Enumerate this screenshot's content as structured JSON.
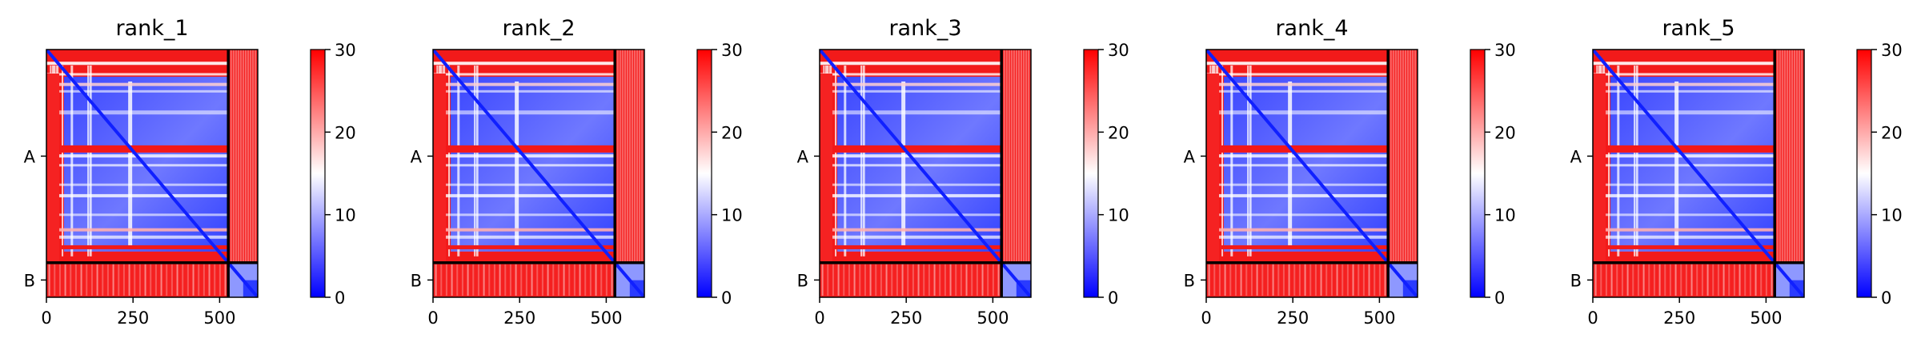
{
  "chart_data": {
    "type": "heatmap",
    "colormap": {
      "low": "#0000ff",
      "mid": "#ffffff",
      "high": "#ff0000"
    },
    "colorbar": {
      "range": [
        0,
        30
      ],
      "ticks": [
        "0",
        "10",
        "20",
        "30"
      ]
    },
    "x_range": [
      0,
      610
    ],
    "x_ticks": [
      {
        "value": 0,
        "label": "0"
      },
      {
        "value": 250,
        "label": "250"
      },
      {
        "value": 500,
        "label": "500"
      }
    ],
    "chain_break": 525,
    "chain_labels": [
      "A",
      "B"
    ],
    "panels": [
      {
        "title": "rank_1"
      },
      {
        "title": "rank_2"
      },
      {
        "title": "rank_3"
      },
      {
        "title": "rank_4"
      },
      {
        "title": "rank_5"
      }
    ]
  }
}
